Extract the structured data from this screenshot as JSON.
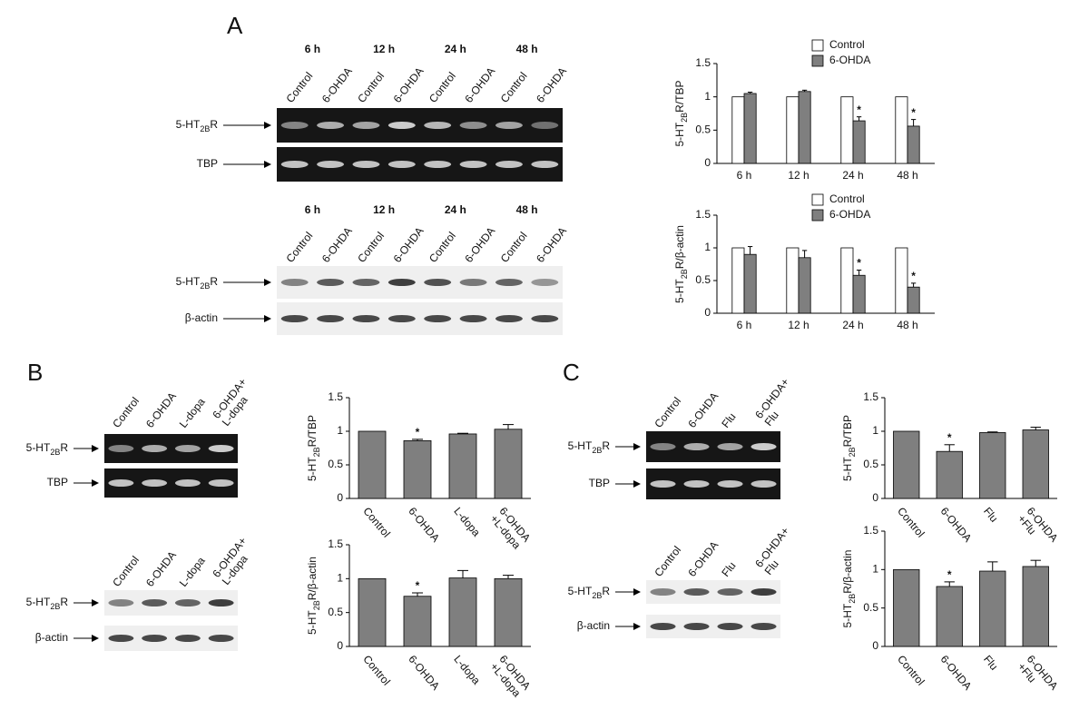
{
  "panels": [
    {
      "letter": "A",
      "gels": [
        {
          "time_labels": [
            "6 h",
            "12 h",
            "24 h",
            "48 h"
          ],
          "lane_labels": [
            "Control",
            "6-OHDA",
            "Control",
            "6-OHDA",
            "Control",
            "6-OHDA",
            "Control",
            "6-OHDA"
          ],
          "rows": [
            {
              "text": "5-HT",
              "sub": "2B",
              "tail": "R"
            },
            {
              "text": "TBP"
            }
          ],
          "style": "dark"
        },
        {
          "time_labels": [
            "6 h",
            "12 h",
            "24 h",
            "48 h"
          ],
          "lane_labels": [
            "Control",
            "6-OHDA",
            "Control",
            "6-OHDA",
            "Control",
            "6-OHDA",
            "Control",
            "6-OHDA"
          ],
          "rows": [
            {
              "text": "5-HT",
              "sub": "2B",
              "tail": "R"
            },
            {
              "text": "β-actin"
            }
          ],
          "style": "light"
        }
      ]
    },
    {
      "letter": "B",
      "gels": [
        {
          "lane_labels": [
            "Control",
            "6-OHDA",
            "L-dopa",
            "6-OHDA+\nL-dopa"
          ],
          "rows": [
            {
              "text": "5-HT",
              "sub": "2B",
              "tail": "R"
            },
            {
              "text": "TBP"
            }
          ],
          "style": "dark"
        },
        {
          "lane_labels": [
            "Control",
            "6-OHDA",
            "L-dopa",
            "6-OHDA+\nL-dopa"
          ],
          "rows": [
            {
              "text": "5-HT",
              "sub": "2B",
              "tail": "R"
            },
            {
              "text": "β-actin"
            }
          ],
          "style": "light"
        }
      ]
    },
    {
      "letter": "C",
      "gels": [
        {
          "lane_labels": [
            "Control",
            "6-OHDA",
            "Flu",
            "6-OHDA+\nFlu"
          ],
          "rows": [
            {
              "text": "5-HT",
              "sub": "2B",
              "tail": "R"
            },
            {
              "text": "TBP"
            }
          ],
          "style": "dark"
        },
        {
          "lane_labels": [
            "Control",
            "6-OHDA",
            "Flu",
            "6-OHDA+\nFlu"
          ],
          "rows": [
            {
              "text": "5-HT",
              "sub": "2B",
              "tail": "R"
            },
            {
              "text": "β-actin"
            }
          ],
          "style": "light"
        }
      ]
    }
  ],
  "chart_data": [
    {
      "type": "bar",
      "ylabel": {
        "text": "5-HT",
        "sub": "2B",
        "tail": "R/TBP"
      },
      "categories": [
        "6 h",
        "12 h",
        "24 h",
        "48 h"
      ],
      "series": [
        {
          "name": "Control",
          "color": "#ffffff",
          "values": [
            1,
            1,
            1,
            1
          ]
        },
        {
          "name": "6-OHDA",
          "color": "#7f7f7f",
          "values": [
            1.05,
            1.08,
            0.64,
            0.56
          ],
          "errors": [
            0.02,
            0.02,
            0.06,
            0.1
          ],
          "significance": [
            null,
            null,
            "*",
            "*"
          ]
        }
      ],
      "ylim": [
        0,
        1.5
      ],
      "yticks": [
        0,
        0.5,
        1,
        1.5
      ],
      "legend": "top"
    },
    {
      "type": "bar",
      "ylabel": {
        "text": "5-HT",
        "sub": "2B",
        "tail": "R/β-actin"
      },
      "categories": [
        "6 h",
        "12 h",
        "24 h",
        "48 h"
      ],
      "series": [
        {
          "name": "Control",
          "color": "#ffffff",
          "values": [
            1,
            1,
            1,
            1
          ]
        },
        {
          "name": "6-OHDA",
          "color": "#7f7f7f",
          "values": [
            0.9,
            0.85,
            0.58,
            0.4
          ],
          "errors": [
            0.12,
            0.11,
            0.08,
            0.06
          ],
          "significance": [
            null,
            null,
            "*",
            "*"
          ]
        }
      ],
      "ylim": [
        0,
        1.5
      ],
      "yticks": [
        0,
        0.5,
        1,
        1.5
      ],
      "legend": "top"
    },
    {
      "type": "bar",
      "ylabel": {
        "text": "5-HT",
        "sub": "2B",
        "tail": "R/TBP"
      },
      "categories": [
        "Control",
        "6-OHDA",
        "L-dopa",
        "6-OHDA\n+L-dopa"
      ],
      "values": [
        1,
        0.86,
        0.96,
        1.03
      ],
      "errors": [
        0,
        0.02,
        0.01,
        0.07
      ],
      "significance": [
        null,
        "*",
        null,
        null
      ],
      "color": "#7f7f7f",
      "ylim": [
        0,
        1.5
      ],
      "yticks": [
        0,
        0.5,
        1,
        1.5
      ]
    },
    {
      "type": "bar",
      "ylabel": {
        "text": "5-HT",
        "sub": "2B",
        "tail": "R/β-actin"
      },
      "categories": [
        "Control",
        "6-OHDA",
        "L-dopa",
        "6-OHDA\n+L-dopa"
      ],
      "values": [
        1,
        0.74,
        1.01,
        1.0
      ],
      "errors": [
        0,
        0.05,
        0.11,
        0.05
      ],
      "significance": [
        null,
        "*",
        null,
        null
      ],
      "color": "#7f7f7f",
      "ylim": [
        0,
        1.5
      ],
      "yticks": [
        0,
        0.5,
        1,
        1.5
      ]
    },
    {
      "type": "bar",
      "ylabel": {
        "text": "5-HT",
        "sub": "2B",
        "tail": "R/TBP"
      },
      "categories": [
        "Control",
        "6-OHDA",
        "Flu",
        "6-OHDA\n+Flu"
      ],
      "values": [
        1,
        0.7,
        0.98,
        1.02
      ],
      "errors": [
        0,
        0.1,
        0.01,
        0.04
      ],
      "significance": [
        null,
        "*",
        null,
        null
      ],
      "color": "#7f7f7f",
      "ylim": [
        0,
        1.5
      ],
      "yticks": [
        0,
        0.5,
        1,
        1.5
      ]
    },
    {
      "type": "bar",
      "ylabel": {
        "text": "5-HT",
        "sub": "2B",
        "tail": "R/β-actin"
      },
      "categories": [
        "Control",
        "6-OHDA",
        "Flu",
        "6-OHDA\n+Flu"
      ],
      "values": [
        1,
        0.78,
        0.98,
        1.04
      ],
      "errors": [
        0,
        0.06,
        0.12,
        0.08
      ],
      "significance": [
        null,
        "*",
        null,
        null
      ],
      "color": "#7f7f7f",
      "ylim": [
        0,
        1.5
      ],
      "yticks": [
        0,
        0.5,
        1,
        1.5
      ]
    }
  ]
}
